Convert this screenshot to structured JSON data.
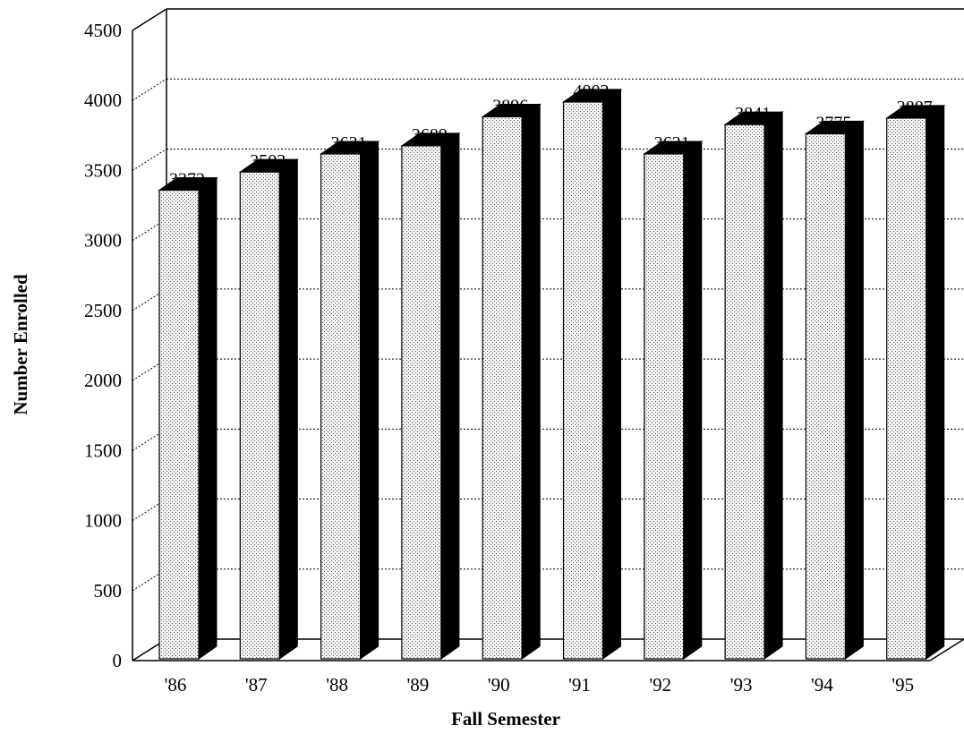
{
  "chart_data": {
    "type": "bar",
    "style": "3d",
    "categories": [
      "'86",
      "'87",
      "'88",
      "'89",
      "'90",
      "'91",
      "'92",
      "'93",
      "'94",
      "'95"
    ],
    "values": [
      3372,
      3502,
      3631,
      3689,
      3896,
      4002,
      3631,
      3841,
      3775,
      3887
    ],
    "data_labels": [
      "3372",
      "3502",
      "3631",
      "3689",
      "3896",
      "4002",
      "3631",
      "3841",
      "3775",
      "3887"
    ],
    "y_ticks": [
      "0",
      "500",
      "1000",
      "1500",
      "2000",
      "2500",
      "3000",
      "3500",
      "4000",
      "4500"
    ],
    "ylim": [
      0,
      4500
    ],
    "xlabel": "Fall Semester",
    "ylabel": "Number Enrolled",
    "grid": true,
    "colors": {
      "bar_face": "#e6e6e6",
      "bar_side": "#000000",
      "grid": "#000000"
    }
  }
}
